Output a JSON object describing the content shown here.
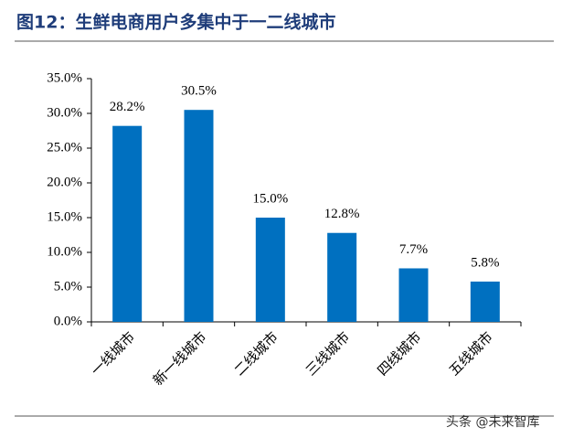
{
  "chart_data": {
    "type": "bar",
    "title": "图12：生鲜电商用户多集中于一二线城市",
    "categories": [
      "一线城市",
      "新一线城市",
      "二线城市",
      "三线城市",
      "四线城市",
      "五线城市"
    ],
    "values": [
      28.2,
      30.5,
      15.0,
      12.8,
      7.7,
      5.8
    ],
    "value_labels": [
      "28.2%",
      "30.5%",
      "15.0%",
      "12.8%",
      "7.7%",
      "5.8%"
    ],
    "color": "#0070c0",
    "ylim": [
      0,
      35
    ],
    "yticks": [
      {
        "value": 0,
        "label": "0.0%"
      },
      {
        "value": 5,
        "label": "5.0%"
      },
      {
        "value": 10,
        "label": "10.0%"
      },
      {
        "value": 15,
        "label": "15.0%"
      },
      {
        "value": 20,
        "label": "20.0%"
      },
      {
        "value": 25,
        "label": "25.0%"
      },
      {
        "value": 30,
        "label": "30.0%"
      },
      {
        "value": 35,
        "label": "35.0%"
      }
    ],
    "grid": false
  },
  "watermark": "头条 @未来智库"
}
